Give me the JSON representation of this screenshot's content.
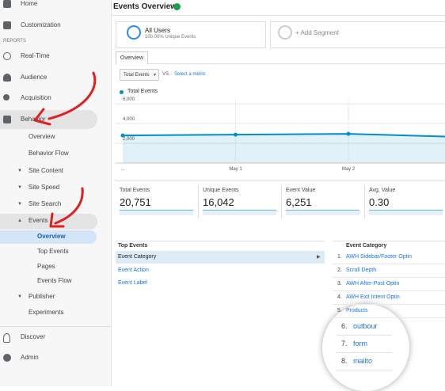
{
  "sidebar": {
    "items": [
      "Home",
      "Customization"
    ],
    "reports_label": "REPORTS",
    "reports": [
      "Real-Time",
      "Audience",
      "Acquisition",
      "Behavior"
    ],
    "behavior": [
      "Overview",
      "Behavior Flow",
      "Site Content",
      "Site Speed",
      "Site Search",
      "Events"
    ],
    "events": [
      "Overview",
      "Top Events",
      "Pages",
      "Events Flow"
    ],
    "more": [
      "Publisher",
      "Experiments"
    ],
    "footer": [
      "Discover",
      "Admin"
    ]
  },
  "header": {
    "title": "Events Overview"
  },
  "segments": {
    "active": "All Users",
    "active_detail": "100.00% Unique Events",
    "add": "+ Add Segment"
  },
  "tabs": [
    "Overview"
  ],
  "controls": {
    "metric": "Total Events",
    "vs": "VS.",
    "select": "Select a metric"
  },
  "chart": {
    "type": "line",
    "legend": "Total Events",
    "categories": [
      "...",
      "May 1",
      "May 2",
      null
    ],
    "values": [
      2800,
      2880,
      2960,
      2640
    ],
    "ylim": [
      0,
      6500
    ],
    "yticks": [
      {
        "value": 2000,
        "label": "2,000"
      },
      {
        "value": 4000,
        "label": "4,000"
      },
      {
        "value": 6000,
        "label": "6,000"
      }
    ],
    "color": "#058dc7"
  },
  "metrics": [
    {
      "label": "Total Events",
      "value": "20,751"
    },
    {
      "label": "Unique Events",
      "value": "16,042"
    },
    {
      "label": "Event Value",
      "value": "6,251"
    },
    {
      "label": "Avg. Value",
      "value": "0.30"
    }
  ],
  "top_events": {
    "title": "Top Events",
    "rows": [
      "Event Category",
      "Event Action",
      "Event Label"
    ]
  },
  "event_category": {
    "title": "Event Category",
    "rows": [
      {
        "rank": "1.",
        "name": "AWH Sidebar/Footer Optin"
      },
      {
        "rank": "2.",
        "name": "Scroll Depth"
      },
      {
        "rank": "3.",
        "name": "AWH After-Post Optin"
      },
      {
        "rank": "4.",
        "name": "AWH Exit Intent Optin"
      },
      {
        "rank": "5.",
        "name": "Products"
      },
      {
        "rank": "6.",
        "name": "outbour"
      },
      {
        "rank": "7.",
        "name": "form"
      },
      {
        "rank": "8.",
        "name": "mailto"
      }
    ]
  }
}
